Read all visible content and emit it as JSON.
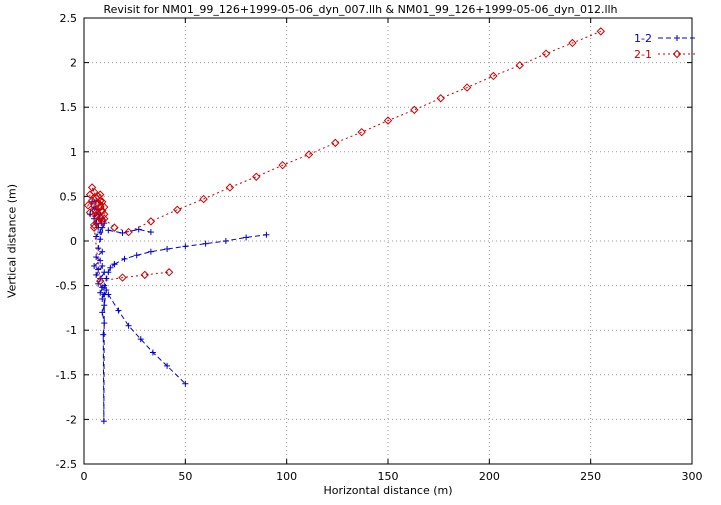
{
  "chart_data": {
    "type": "line",
    "title": "Revisit for NM01_99_126+1999-05-06_dyn_007.llh & NM01_99_126+1999-05-06_dyn_012.llh",
    "xlabel": "Horizontal distance (m)",
    "ylabel": "Vertical distance (m)",
    "xlim": [
      0,
      300
    ],
    "ylim": [
      -2.5,
      2.5
    ],
    "xtick_values": [
      0,
      50,
      100,
      150,
      200,
      250,
      300
    ],
    "xtick_labels": [
      "0",
      "50",
      "100",
      "150",
      "200",
      "250",
      "300"
    ],
    "ytick_values": [
      -2.5,
      -2,
      -1.5,
      -1,
      -0.5,
      0,
      0.5,
      1,
      1.5,
      2,
      2.5
    ],
    "ytick_labels": [
      "-2.5",
      "-2",
      "-1.5",
      "-1",
      "-0.5",
      "0",
      "0.5",
      "1",
      "1.5",
      "2",
      "2.5"
    ],
    "grid": true,
    "grid_color": "#9a9a9a",
    "axis_color": "#000000",
    "legend_position": "top-right",
    "series": [
      {
        "name": "1-2",
        "color": "#0000cc",
        "marker": "plus",
        "dash": "5,3",
        "segments": [
          [
            [
              4,
              0.44
            ],
            [
              3,
              0.3
            ],
            [
              5,
              0.38
            ],
            [
              6,
              0.45
            ],
            [
              5,
              0.25
            ],
            [
              7,
              0.35
            ],
            [
              6,
              0.2
            ],
            [
              8,
              0.3
            ],
            [
              7,
              0.15
            ],
            [
              9,
              0.25
            ],
            [
              8,
              0.1
            ],
            [
              6,
              0.05
            ],
            [
              9,
              0.15
            ],
            [
              10,
              0.2
            ],
            [
              8,
              0.02
            ],
            [
              7,
              -0.08
            ],
            [
              9,
              -0.12
            ],
            [
              6,
              -0.18
            ],
            [
              8,
              -0.22
            ],
            [
              5,
              -0.28
            ],
            [
              7,
              -0.32
            ],
            [
              9,
              -0.28
            ],
            [
              6,
              -0.38
            ],
            [
              8,
              -0.42
            ],
            [
              10,
              -0.35
            ],
            [
              7,
              -0.48
            ],
            [
              9,
              -0.52
            ],
            [
              8,
              -0.58
            ],
            [
              10,
              -0.5
            ],
            [
              9,
              -0.65
            ],
            [
              11,
              -0.55
            ],
            [
              10,
              -0.72
            ],
            [
              9,
              -0.8
            ],
            [
              10,
              -0.92
            ],
            [
              9.5,
              -1.05
            ],
            [
              9.8,
              -2.02
            ],
            [
              10,
              -0.6
            ],
            [
              11,
              -0.42
            ],
            [
              12,
              -0.35
            ],
            [
              13,
              -0.3
            ],
            [
              15,
              -0.26
            ]
          ],
          [
            [
              15,
              -0.26
            ],
            [
              20,
              -0.2
            ],
            [
              26,
              -0.16
            ],
            [
              33,
              -0.12
            ],
            [
              41,
              -0.09
            ],
            [
              50,
              -0.06
            ],
            [
              60,
              -0.03
            ],
            [
              70,
              0.0
            ],
            [
              80,
              0.04
            ],
            [
              90,
              0.07
            ]
          ],
          [
            [
              12,
              0.12
            ],
            [
              19,
              0.09
            ],
            [
              27,
              0.13
            ],
            [
              33,
              0.1
            ]
          ],
          [
            [
              12,
              -0.6
            ],
            [
              17,
              -0.78
            ],
            [
              22,
              -0.95
            ],
            [
              28,
              -1.1
            ],
            [
              34,
              -1.25
            ],
            [
              41,
              -1.4
            ],
            [
              50,
              -1.6
            ]
          ]
        ]
      },
      {
        "name": "2-1",
        "color": "#cc0000",
        "marker": "diamond",
        "dash": "2,3",
        "segments": [
          [
            [
              3,
              0.52
            ],
            [
              2,
              0.4
            ],
            [
              4,
              0.45
            ],
            [
              3,
              0.32
            ],
            [
              5,
              0.55
            ],
            [
              4,
              0.6
            ],
            [
              6,
              0.48
            ],
            [
              5,
              0.35
            ],
            [
              7,
              0.42
            ],
            [
              6,
              0.28
            ],
            [
              8,
              0.38
            ],
            [
              7,
              0.22
            ],
            [
              5,
              0.18
            ],
            [
              6,
              0.32
            ],
            [
              8,
              0.26
            ],
            [
              9,
              0.34
            ],
            [
              7,
              0.5
            ],
            [
              8,
              0.52
            ],
            [
              9,
              0.44
            ],
            [
              10,
              0.3
            ],
            [
              9,
              0.22
            ],
            [
              8,
              0.45
            ],
            [
              10,
              0.38
            ]
          ],
          [
            [
              10,
              0.25
            ],
            [
              15,
              0.15
            ],
            [
              22,
              0.1
            ],
            [
              33,
              0.22
            ],
            [
              46,
              0.35
            ],
            [
              59,
              0.47
            ],
            [
              72,
              0.6
            ],
            [
              85,
              0.72
            ],
            [
              98,
              0.85
            ],
            [
              111,
              0.97
            ],
            [
              124,
              1.1
            ],
            [
              137,
              1.22
            ],
            [
              150,
              1.35
            ],
            [
              163,
              1.47
            ],
            [
              176,
              1.6
            ],
            [
              189,
              1.72
            ],
            [
              202,
              1.85
            ],
            [
              215,
              1.97
            ],
            [
              228,
              2.1
            ],
            [
              241,
              2.22
            ],
            [
              255,
              2.35
            ]
          ],
          [
            [
              5,
              0.15
            ],
            [
              8,
              -0.45
            ],
            [
              19,
              -0.41
            ],
            [
              30,
              -0.38
            ],
            [
              42,
              -0.35
            ]
          ]
        ]
      }
    ]
  }
}
